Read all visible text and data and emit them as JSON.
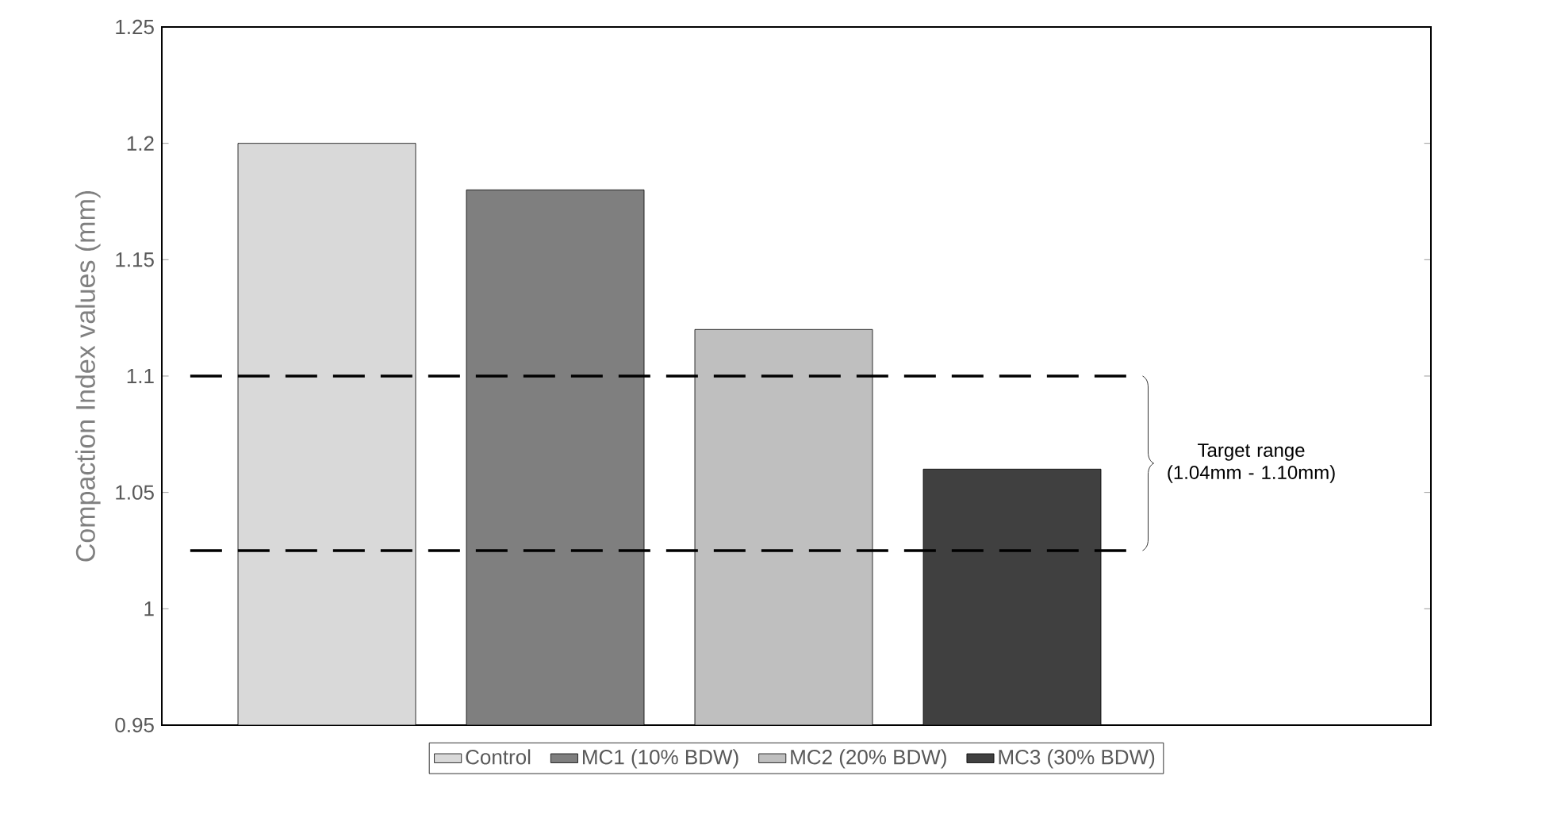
{
  "chart_data": {
    "type": "bar",
    "ylabel": "Compaction Index values (mm)",
    "categories": [
      null
    ],
    "series": [
      {
        "name": "Control",
        "color": "#d9d9d9",
        "values": [
          1.2
        ]
      },
      {
        "name": "MC1 (10% BDW)",
        "color": "#7f7f7f",
        "values": [
          1.18
        ]
      },
      {
        "name": "MC2 (20% BDW)",
        "color": "#bfbfbf",
        "values": [
          1.12
        ]
      },
      {
        "name": "MC3 (30% BDW)",
        "color": "#404040",
        "values": [
          1.06
        ]
      }
    ],
    "ylim": [
      0.95,
      1.25
    ],
    "yticks": [
      0.95,
      1,
      1.05,
      1.1,
      1.15,
      1.2,
      1.25
    ],
    "ref_lines": [
      {
        "axis": "y",
        "value": 1.1,
        "line_style": "dashed"
      },
      {
        "axis": "y",
        "value": 1.025,
        "line_style": "dashed"
      }
    ],
    "annotations": [
      "Target range (1.04mm - 1.10mm)"
    ],
    "grid": false,
    "legend": "bottom"
  }
}
